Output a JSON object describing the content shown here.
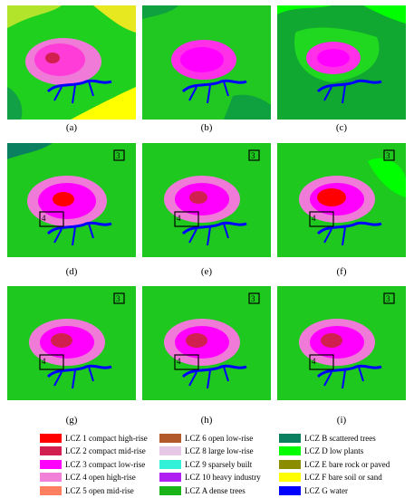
{
  "panels": [
    {
      "label": "(a)",
      "markers": []
    },
    {
      "label": "(b)",
      "markers": []
    },
    {
      "label": "(c)",
      "markers": []
    },
    {
      "label": "(d)",
      "markers": [
        "3",
        "4"
      ]
    },
    {
      "label": "(e)",
      "markers": [
        "3",
        "4"
      ]
    },
    {
      "label": "(f)",
      "markers": [
        "3",
        "4"
      ]
    },
    {
      "label": "(g)",
      "markers": [
        "3",
        "4"
      ]
    },
    {
      "label": "(h)",
      "markers": [
        "3",
        "4"
      ]
    },
    {
      "label": "(i)",
      "markers": [
        "3",
        "4"
      ]
    }
  ],
  "legend": {
    "columns": [
      [
        {
          "label": "LCZ 1 compact high-rise",
          "color": "#ff0000"
        },
        {
          "label": "LCZ 2 compact mid-rise",
          "color": "#d1204f"
        },
        {
          "label": "LCZ 3 compact low-rise",
          "color": "#ff00ff"
        },
        {
          "label": "LCZ 4 open high-rise",
          "color": "#f080d8"
        },
        {
          "label": "LCZ 5 open mid-rise",
          "color": "#ff8060"
        }
      ],
      [
        {
          "label": "LCZ 6 open low-rise",
          "color": "#b35a2a"
        },
        {
          "label": "LCZ 8 large low-rise",
          "color": "#e6c8e6"
        },
        {
          "label": "LCZ 9 sparsely built",
          "color": "#33f0d8"
        },
        {
          "label": "LCZ 10 heavy industry",
          "color": "#b020f0"
        },
        {
          "label": "LCZ A dense trees",
          "color": "#18b418"
        }
      ],
      [
        {
          "label": "LCZ B scattered trees",
          "color": "#0a8060"
        },
        {
          "label": "LCZ D low plants",
          "color": "#00ff00"
        },
        {
          "label": "LCZ E bare rock or paved",
          "color": "#8c8c00"
        },
        {
          "label": "LCZ F bare soil or sand",
          "color": "#ffff00"
        },
        {
          "label": "LCZ G water",
          "color": "#0000ff"
        }
      ]
    ]
  }
}
